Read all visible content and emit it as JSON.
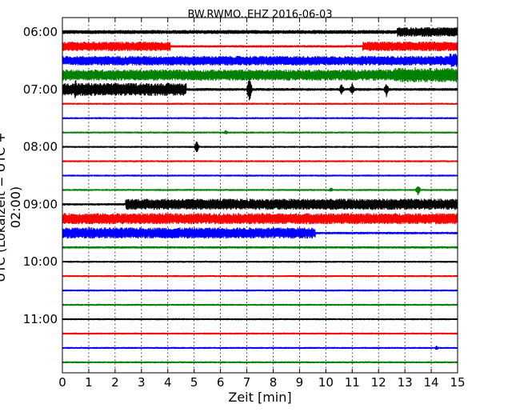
{
  "chart_data": {
    "type": "line",
    "title": "BW.RWMO..EHZ 2016-06-03",
    "xlabel": "Zeit  [min]",
    "ylabel": "UTC (Lokalzeit = UTC + 02:00)",
    "xlim": [
      0,
      15
    ],
    "x_ticks": [
      "0",
      "1",
      "2",
      "3",
      "4",
      "5",
      "6",
      "7",
      "8",
      "9",
      "10",
      "11",
      "12",
      "13",
      "14",
      "15"
    ],
    "y_tick_labels": [
      "06:00",
      "07:00",
      "08:00",
      "09:00",
      "10:00",
      "11:00"
    ],
    "y_tick_rows": [
      0,
      4,
      8,
      12,
      16,
      20
    ],
    "grid": "vertical-dotted",
    "colors": [
      "#000000",
      "#ff0000",
      "#0000ff",
      "#008000"
    ],
    "traces": [
      {
        "time": "06:00",
        "color": "#000000",
        "base": 2.5,
        "segments": [
          [
            12.7,
            15,
            6
          ]
        ],
        "spikes": []
      },
      {
        "time": "06:15",
        "color": "#ff0000",
        "base": 1.5,
        "segments": [
          [
            0,
            4.1,
            6
          ],
          [
            11.4,
            15,
            6
          ]
        ],
        "spikes": []
      },
      {
        "time": "06:30",
        "color": "#0000ff",
        "base": 6,
        "segments": [
          [
            14.7,
            15,
            9
          ]
        ],
        "spikes": []
      },
      {
        "time": "06:45",
        "color": "#008000",
        "base": 7,
        "segments": [
          [
            12.6,
            15,
            9
          ]
        ],
        "spikes": [
          [
            12.8,
            10
          ],
          [
            13.4,
            11
          ]
        ]
      },
      {
        "time": "07:00",
        "color": "#000000",
        "base": 1.8,
        "segments": [
          [
            0,
            4.7,
            8
          ]
        ],
        "spikes": [
          [
            0.5,
            14
          ],
          [
            7.1,
            18
          ],
          [
            10.6,
            8
          ],
          [
            11.0,
            8
          ],
          [
            12.3,
            10
          ]
        ]
      },
      {
        "time": "07:15",
        "color": "#ff0000",
        "base": 1.2,
        "segments": [],
        "spikes": []
      },
      {
        "time": "07:30",
        "color": "#0000ff",
        "base": 1.2,
        "segments": [],
        "spikes": []
      },
      {
        "time": "07:45",
        "color": "#008000",
        "base": 1.2,
        "segments": [],
        "spikes": [
          [
            6.2,
            3
          ]
        ]
      },
      {
        "time": "08:00",
        "color": "#000000",
        "base": 1.2,
        "segments": [],
        "spikes": [
          [
            5.1,
            8
          ]
        ]
      },
      {
        "time": "08:15",
        "color": "#ff0000",
        "base": 1.2,
        "segments": [],
        "spikes": []
      },
      {
        "time": "08:30",
        "color": "#0000ff",
        "base": 1.2,
        "segments": [],
        "spikes": []
      },
      {
        "time": "08:45",
        "color": "#008000",
        "base": 1.2,
        "segments": [],
        "spikes": [
          [
            10.2,
            3
          ],
          [
            13.5,
            7
          ]
        ]
      },
      {
        "time": "09:00",
        "color": "#000000",
        "base": 1.5,
        "segments": [
          [
            2.4,
            15,
            7
          ]
        ],
        "spikes": []
      },
      {
        "time": "09:15",
        "color": "#ff0000",
        "base": 7,
        "segments": [],
        "spikes": []
      },
      {
        "time": "09:30",
        "color": "#0000ff",
        "base": 1.5,
        "segments": [
          [
            0,
            9.6,
            7
          ]
        ],
        "spikes": []
      },
      {
        "time": "09:45",
        "color": "#008000",
        "base": 1.5,
        "segments": [],
        "spikes": []
      },
      {
        "time": "10:00",
        "color": "#000000",
        "base": 1.2,
        "segments": [],
        "spikes": []
      },
      {
        "time": "10:15",
        "color": "#ff0000",
        "base": 1.2,
        "segments": [],
        "spikes": []
      },
      {
        "time": "10:30",
        "color": "#0000ff",
        "base": 1.2,
        "segments": [],
        "spikes": []
      },
      {
        "time": "10:45",
        "color": "#008000",
        "base": 1.2,
        "segments": [],
        "spikes": []
      },
      {
        "time": "11:00",
        "color": "#000000",
        "base": 1.2,
        "segments": [],
        "spikes": []
      },
      {
        "time": "11:15",
        "color": "#ff0000",
        "base": 1.2,
        "segments": [],
        "spikes": []
      },
      {
        "time": "11:30",
        "color": "#0000ff",
        "base": 1.2,
        "segments": [],
        "spikes": [
          [
            14.2,
            3
          ]
        ]
      },
      {
        "time": "11:45",
        "color": "#008000",
        "base": 1.2,
        "segments": [],
        "spikes": []
      }
    ]
  }
}
